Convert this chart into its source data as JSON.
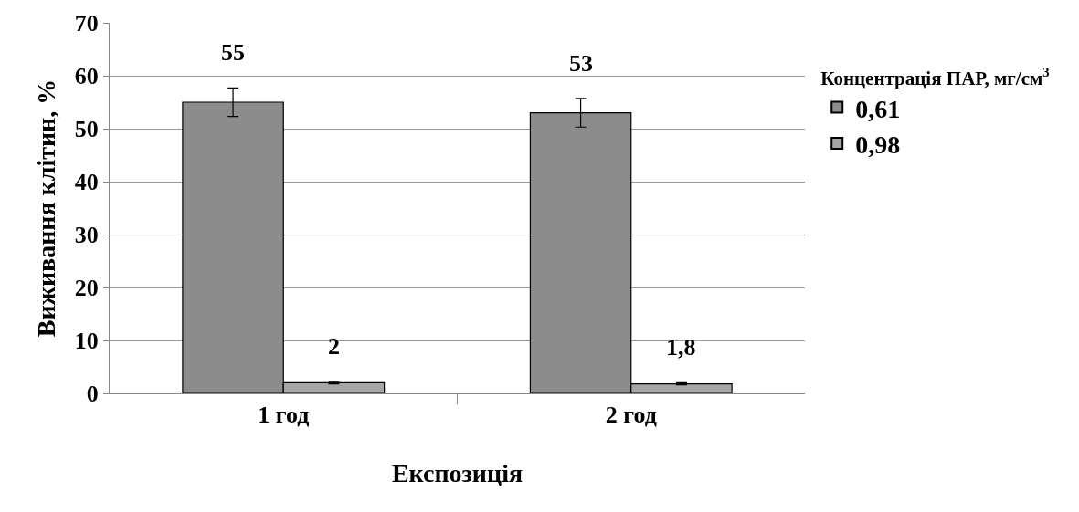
{
  "chart_data": {
    "type": "bar",
    "xlabel": "Експозиція",
    "ylabel": "Виживання клітин, %",
    "legend_title": "Концентрація ПАР, мг/см$^{3}$",
    "categories": [
      "1 год",
      "2 год"
    ],
    "series": [
      {
        "name": "0,61",
        "color": "#8c8c8c",
        "values": [
          55,
          53
        ],
        "errors": [
          2.7,
          2.7
        ],
        "value_labels": [
          "55",
          "53"
        ]
      },
      {
        "name": "0,98",
        "color": "#a6a6a6",
        "values": [
          2,
          1.8
        ],
        "errors": [
          0.2,
          0.2
        ],
        "value_labels": [
          "2",
          "1,8"
        ]
      }
    ],
    "ylim": [
      0,
      70
    ],
    "yticks": [
      0,
      10,
      20,
      30,
      40,
      50,
      60,
      70
    ],
    "grid": "y",
    "legend": "right"
  }
}
